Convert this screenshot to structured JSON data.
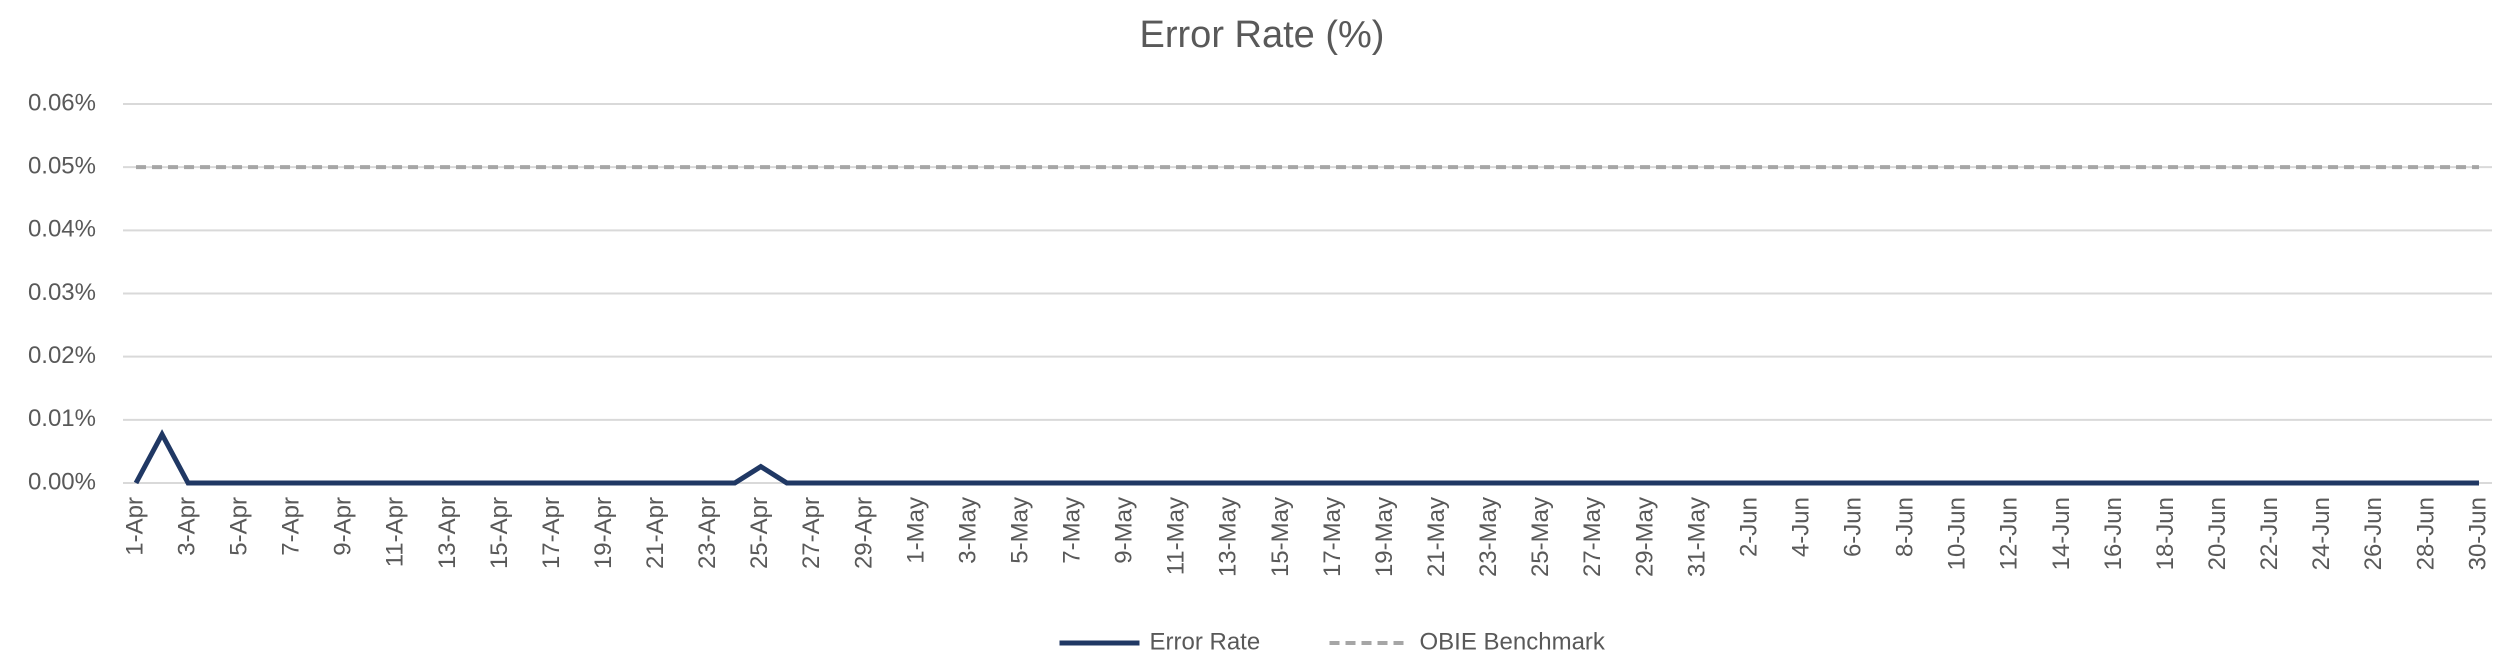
{
  "chart_data": {
    "type": "line",
    "title": "Error Rate (%)",
    "categories": [
      "1-Apr",
      null,
      "3-Apr",
      null,
      "5-Apr",
      null,
      "7-Apr",
      null,
      "9-Apr",
      null,
      "11-Apr",
      null,
      "13-Apr",
      null,
      "15-Apr",
      null,
      "17-Apr",
      null,
      "19-Apr",
      null,
      "21-Apr",
      null,
      "23-Apr",
      null,
      "25-Apr",
      null,
      "27-Apr",
      null,
      "29-Apr",
      null,
      "1-May",
      null,
      "3-May",
      null,
      "5-May",
      null,
      "7-May",
      null,
      "9-May",
      null,
      "11-May",
      null,
      "13-May",
      null,
      "15-May",
      null,
      "17-May",
      null,
      "19-May",
      null,
      "21-May",
      null,
      "23-May",
      null,
      "25-May",
      null,
      "27-May",
      null,
      "29-May",
      null,
      "31-May",
      null,
      "2-Jun",
      null,
      "4-Jun",
      null,
      "6-Jun",
      null,
      "8-Jun",
      null,
      "10-Jun",
      null,
      "12-Jun",
      null,
      "14-Jun",
      null,
      "16-Jun",
      null,
      "18-Jun",
      null,
      "20-Jun",
      null,
      "22-Jun",
      null,
      "24-Jun",
      null,
      "26-Jun",
      null,
      "28-Jun",
      null,
      "30-Jun"
    ],
    "series": [
      {
        "name": "Error Rate",
        "color": "#203864",
        "dashed": false,
        "values": [
          0,
          0.0077,
          0,
          0,
          0,
          0,
          0,
          0,
          0,
          0,
          0,
          0,
          0,
          0,
          0,
          0,
          0,
          0,
          0,
          0,
          0,
          0,
          0,
          0,
          0.0026,
          0,
          0,
          0,
          0,
          0,
          0,
          0,
          0,
          0,
          0,
          0,
          0,
          0,
          0,
          0,
          0,
          0,
          0,
          0,
          0,
          0,
          0,
          0,
          0,
          0,
          0,
          0,
          0,
          0,
          0,
          0,
          0,
          0,
          0,
          0,
          0,
          0,
          0,
          0,
          0,
          0,
          0,
          0,
          0,
          0,
          0,
          0,
          0,
          0,
          0,
          0,
          0,
          0,
          0,
          0,
          0,
          0,
          0,
          0,
          0,
          0,
          0,
          0,
          0,
          0,
          0
        ]
      },
      {
        "name": "OBIE Benchmark",
        "color": "#a6a6a6",
        "dashed": true,
        "values": [
          0.05,
          0.05,
          0.05,
          0.05,
          0.05,
          0.05,
          0.05,
          0.05,
          0.05,
          0.05,
          0.05,
          0.05,
          0.05,
          0.05,
          0.05,
          0.05,
          0.05,
          0.05,
          0.05,
          0.05,
          0.05,
          0.05,
          0.05,
          0.05,
          0.05,
          0.05,
          0.05,
          0.05,
          0.05,
          0.05,
          0.05,
          0.05,
          0.05,
          0.05,
          0.05,
          0.05,
          0.05,
          0.05,
          0.05,
          0.05,
          0.05,
          0.05,
          0.05,
          0.05,
          0.05,
          0.05,
          0.05,
          0.05,
          0.05,
          0.05,
          0.05,
          0.05,
          0.05,
          0.05,
          0.05,
          0.05,
          0.05,
          0.05,
          0.05,
          0.05,
          0.05,
          0.05,
          0.05,
          0.05,
          0.05,
          0.05,
          0.05,
          0.05,
          0.05,
          0.05,
          0.05,
          0.05,
          0.05,
          0.05,
          0.05,
          0.05,
          0.05,
          0.05,
          0.05,
          0.05,
          0.05,
          0.05,
          0.05,
          0.05,
          0.05,
          0.05,
          0.05,
          0.05,
          0.05,
          0.05,
          0.05
        ]
      }
    ],
    "ylim": [
      0,
      0.06
    ],
    "yticks": [
      {
        "value": 0,
        "label": "0.00%"
      },
      {
        "value": 0.01,
        "label": "0.01%"
      },
      {
        "value": 0.02,
        "label": "0.02%"
      },
      {
        "value": 0.03,
        "label": "0.03%"
      },
      {
        "value": 0.04,
        "label": "0.04%"
      },
      {
        "value": 0.05,
        "label": "0.05%"
      },
      {
        "value": 0.06,
        "label": "0.06%"
      }
    ],
    "grid": true,
    "legend": "bottom"
  }
}
